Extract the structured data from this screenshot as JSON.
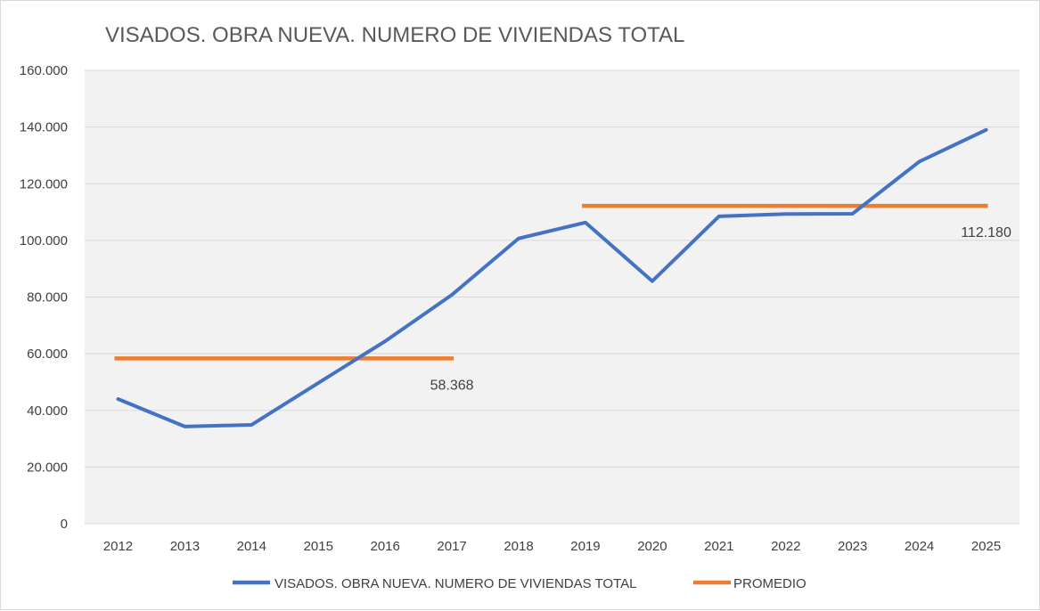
{
  "chart_data": {
    "type": "line",
    "title": "VISADOS. OBRA NUEVA. NUMERO DE VIVIENDAS TOTAL",
    "categories": [
      "2012",
      "2013",
      "2014",
      "2015",
      "2016",
      "2017",
      "2018",
      "2019",
      "2020",
      "2021",
      "2022",
      "2023",
      "2024",
      "2025"
    ],
    "ylim": [
      0,
      160000
    ],
    "ytick_values": [
      0,
      20000,
      40000,
      60000,
      80000,
      100000,
      120000,
      140000,
      160000
    ],
    "ytick_labels": [
      "0",
      "20.000",
      "40.000",
      "60.000",
      "80.000",
      "100.000",
      "120.000",
      "140.000",
      "160.000"
    ],
    "grid": true,
    "legend_position": "bottom",
    "series": [
      {
        "name": "VISADOS. OBRA NUEVA. NUMERO DE VIVIENDAS TOTAL",
        "color": "#4472c4",
        "values": [
          44000,
          34300,
          34900,
          49700,
          64400,
          80800,
          100700,
          106300,
          85600,
          108500,
          109300,
          109400,
          127800,
          139000
        ]
      }
    ],
    "promedio": {
      "name": "PROMEDIO",
      "color": "#ed7d31",
      "segments": [
        {
          "start": "2012",
          "end": "2017",
          "value": 58368,
          "label": "58.368"
        },
        {
          "start": "2019",
          "end": "2025",
          "value": 112180,
          "label": "112.180"
        }
      ]
    }
  }
}
